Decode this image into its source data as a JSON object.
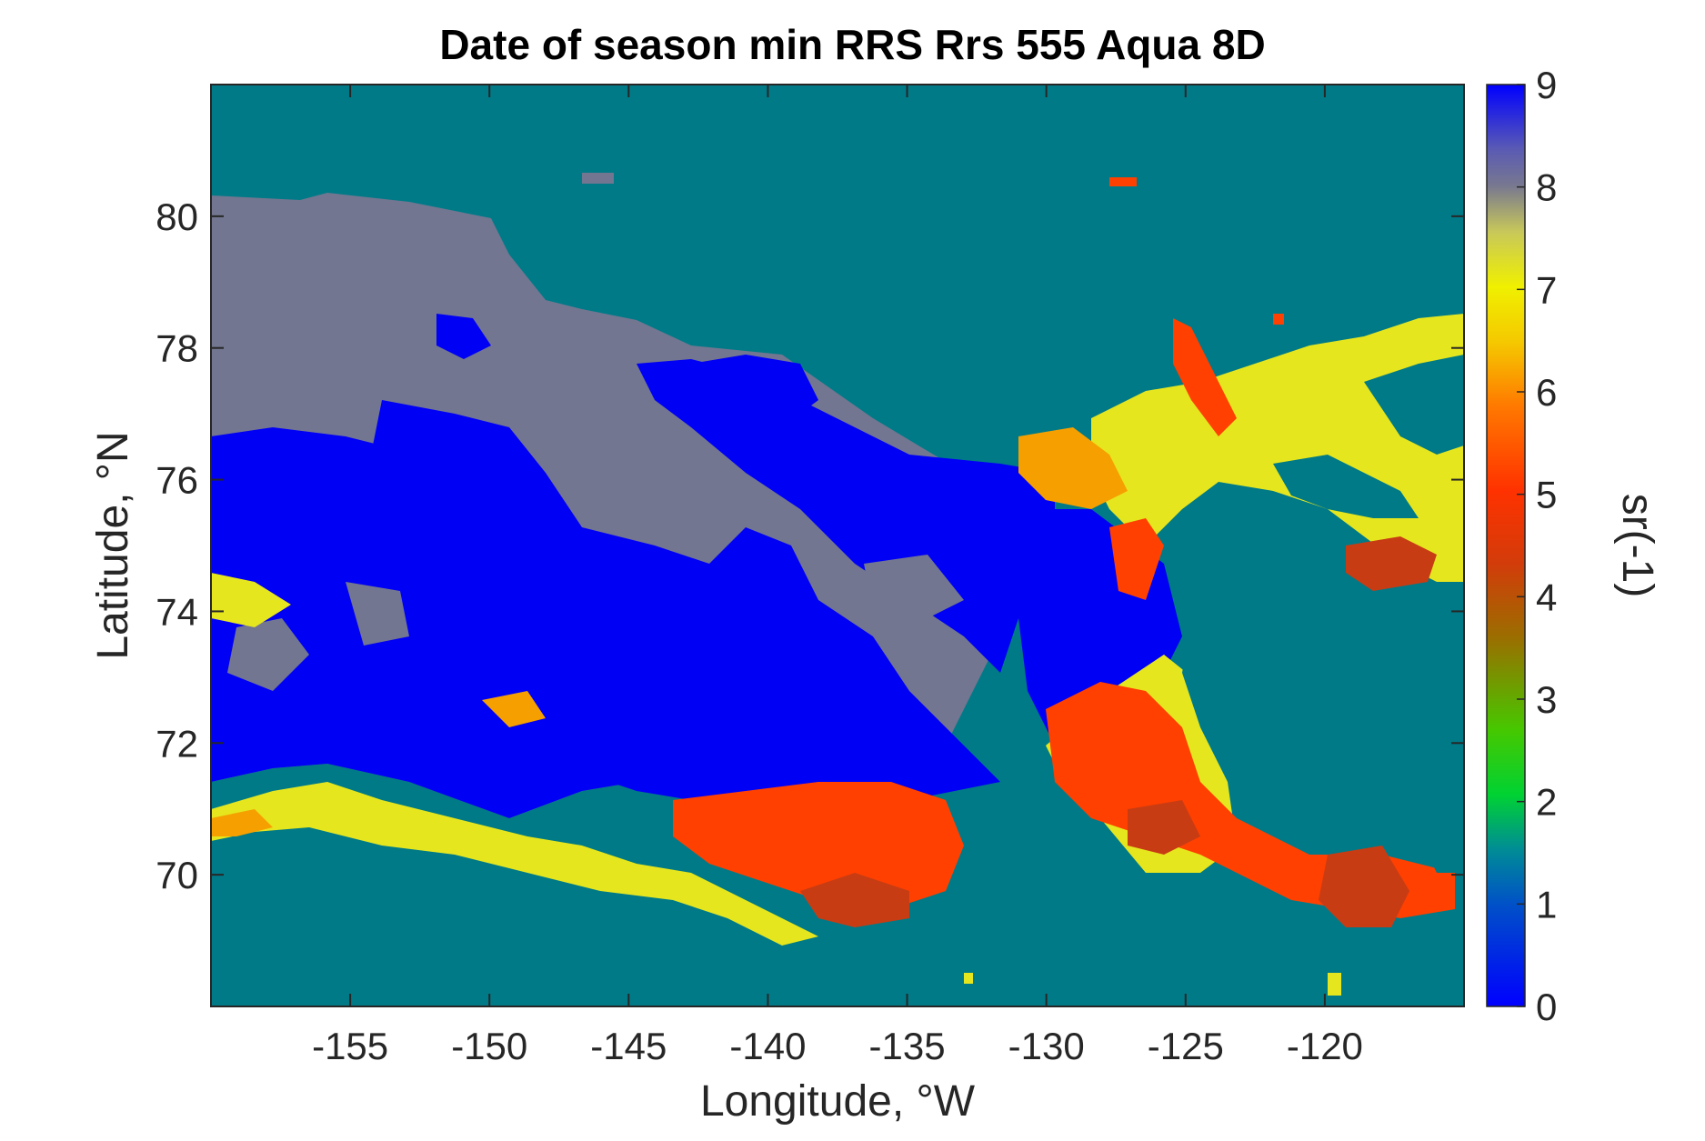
{
  "chart_data": {
    "type": "heatmap",
    "title": "Date of season min RRS Rrs 555 Aqua 8D",
    "xlabel": "Longitude, °W",
    "ylabel": "Latitude, °N",
    "xlim": [
      -160,
      -115
    ],
    "ylim": [
      68,
      82
    ],
    "x_ticks": [
      -155,
      -150,
      -145,
      -140,
      -135,
      -130,
      -125,
      -120
    ],
    "y_ticks": [
      70,
      72,
      74,
      76,
      78,
      80
    ],
    "colorbar": {
      "label": "sr(-1)",
      "range": [
        0,
        9
      ],
      "ticks": [
        0,
        1,
        2,
        3,
        4,
        5,
        6,
        7,
        8,
        9
      ],
      "colormap": "jet"
    },
    "grid": false,
    "colors": {
      "land_nodata": "#007A87",
      "value_8": "#727690",
      "value_9": "#0000F5",
      "value_7": "#E6E61E",
      "value_6": "#F5A000",
      "value_5": "#FF4000",
      "value_4": "#C83C14"
    },
    "regions": [
      {
        "value": 8,
        "description": "grey band across the northern and central basin"
      },
      {
        "value": 9,
        "description": "blue patches over the central Beaufort Sea"
      },
      {
        "value": 5,
        "description": "orange-red along the Mackenzie shelf and Amundsen Gulf"
      },
      {
        "value": 7,
        "description": "yellow rim along coastlines"
      }
    ]
  }
}
